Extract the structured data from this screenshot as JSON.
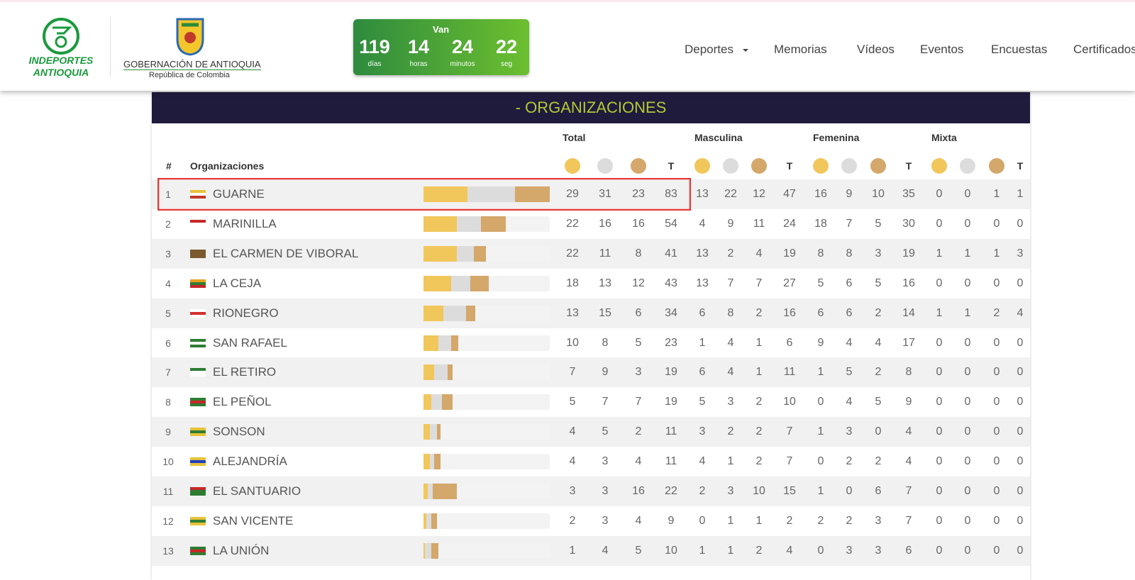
{
  "header": {
    "logo": {
      "line1": "INDEPORTES",
      "line2": "ANTIOQUIA"
    },
    "gov": {
      "line1": "GOBERNACIÓN DE ANTIOQUIA",
      "line2": "República de Colombia"
    },
    "countdown": {
      "label": "Van",
      "items": [
        {
          "value": "119",
          "unit": "días"
        },
        {
          "value": "14",
          "unit": "horas"
        },
        {
          "value": "24",
          "unit": "minutos"
        },
        {
          "value": "22",
          "unit": "seg"
        }
      ]
    },
    "nav": [
      "Deportes",
      "Memorias",
      "Vídeos",
      "Eventos",
      "Encuestas",
      "Certificados"
    ]
  },
  "table": {
    "title": "- ORGANIZACIONES",
    "groups": [
      "Total",
      "Masculina",
      "Femenina",
      "Mixta"
    ],
    "rank_header": "#",
    "name_header": "Organizaciones",
    "total_header": "T",
    "rows": [
      {
        "rank": "1",
        "name": "GUARNE",
        "values": [
          29,
          31,
          23,
          83,
          13,
          22,
          12,
          47,
          16,
          9,
          10,
          35,
          0,
          0,
          1,
          1
        ]
      },
      {
        "rank": "2",
        "name": "MARINILLA",
        "values": [
          22,
          16,
          16,
          54,
          4,
          9,
          11,
          24,
          18,
          7,
          5,
          30,
          0,
          0,
          0,
          0
        ]
      },
      {
        "rank": "3",
        "name": "EL CARMEN DE VIBORAL",
        "values": [
          22,
          11,
          8,
          41,
          13,
          2,
          4,
          19,
          8,
          8,
          3,
          19,
          1,
          1,
          1,
          3
        ]
      },
      {
        "rank": "4",
        "name": "LA CEJA",
        "values": [
          18,
          13,
          12,
          43,
          13,
          7,
          7,
          27,
          5,
          6,
          5,
          16,
          0,
          0,
          0,
          0
        ]
      },
      {
        "rank": "5",
        "name": "RIONEGRO",
        "values": [
          13,
          15,
          6,
          34,
          6,
          8,
          2,
          16,
          6,
          6,
          2,
          14,
          1,
          1,
          2,
          4
        ]
      },
      {
        "rank": "6",
        "name": "SAN RAFAEL",
        "values": [
          10,
          8,
          5,
          23,
          1,
          4,
          1,
          6,
          9,
          4,
          4,
          17,
          0,
          0,
          0,
          0
        ]
      },
      {
        "rank": "7",
        "name": "EL RETIRO",
        "values": [
          7,
          9,
          3,
          19,
          6,
          4,
          1,
          11,
          1,
          5,
          2,
          8,
          0,
          0,
          0,
          0
        ]
      },
      {
        "rank": "8",
        "name": "EL PEÑOL",
        "values": [
          5,
          7,
          7,
          19,
          5,
          3,
          2,
          10,
          0,
          4,
          5,
          9,
          0,
          0,
          0,
          0
        ]
      },
      {
        "rank": "9",
        "name": "SONSON",
        "values": [
          4,
          5,
          2,
          11,
          3,
          2,
          2,
          7,
          1,
          3,
          0,
          4,
          0,
          0,
          0,
          0
        ]
      },
      {
        "rank": "10",
        "name": "ALEJANDRÍA",
        "values": [
          4,
          3,
          4,
          11,
          4,
          1,
          2,
          7,
          0,
          2,
          2,
          4,
          0,
          0,
          0,
          0
        ]
      },
      {
        "rank": "11",
        "name": "EL SANTUARIO",
        "values": [
          3,
          3,
          16,
          22,
          2,
          3,
          10,
          15,
          1,
          0,
          6,
          7,
          0,
          0,
          0,
          0
        ]
      },
      {
        "rank": "12",
        "name": "SAN VICENTE",
        "values": [
          2,
          3,
          4,
          9,
          0,
          1,
          1,
          2,
          2,
          2,
          3,
          7,
          0,
          0,
          0,
          0
        ]
      },
      {
        "rank": "13",
        "name": "LA UNIÓN",
        "values": [
          1,
          4,
          5,
          10,
          1,
          1,
          2,
          4,
          0,
          3,
          3,
          6,
          0,
          0,
          0,
          0
        ]
      }
    ]
  }
}
